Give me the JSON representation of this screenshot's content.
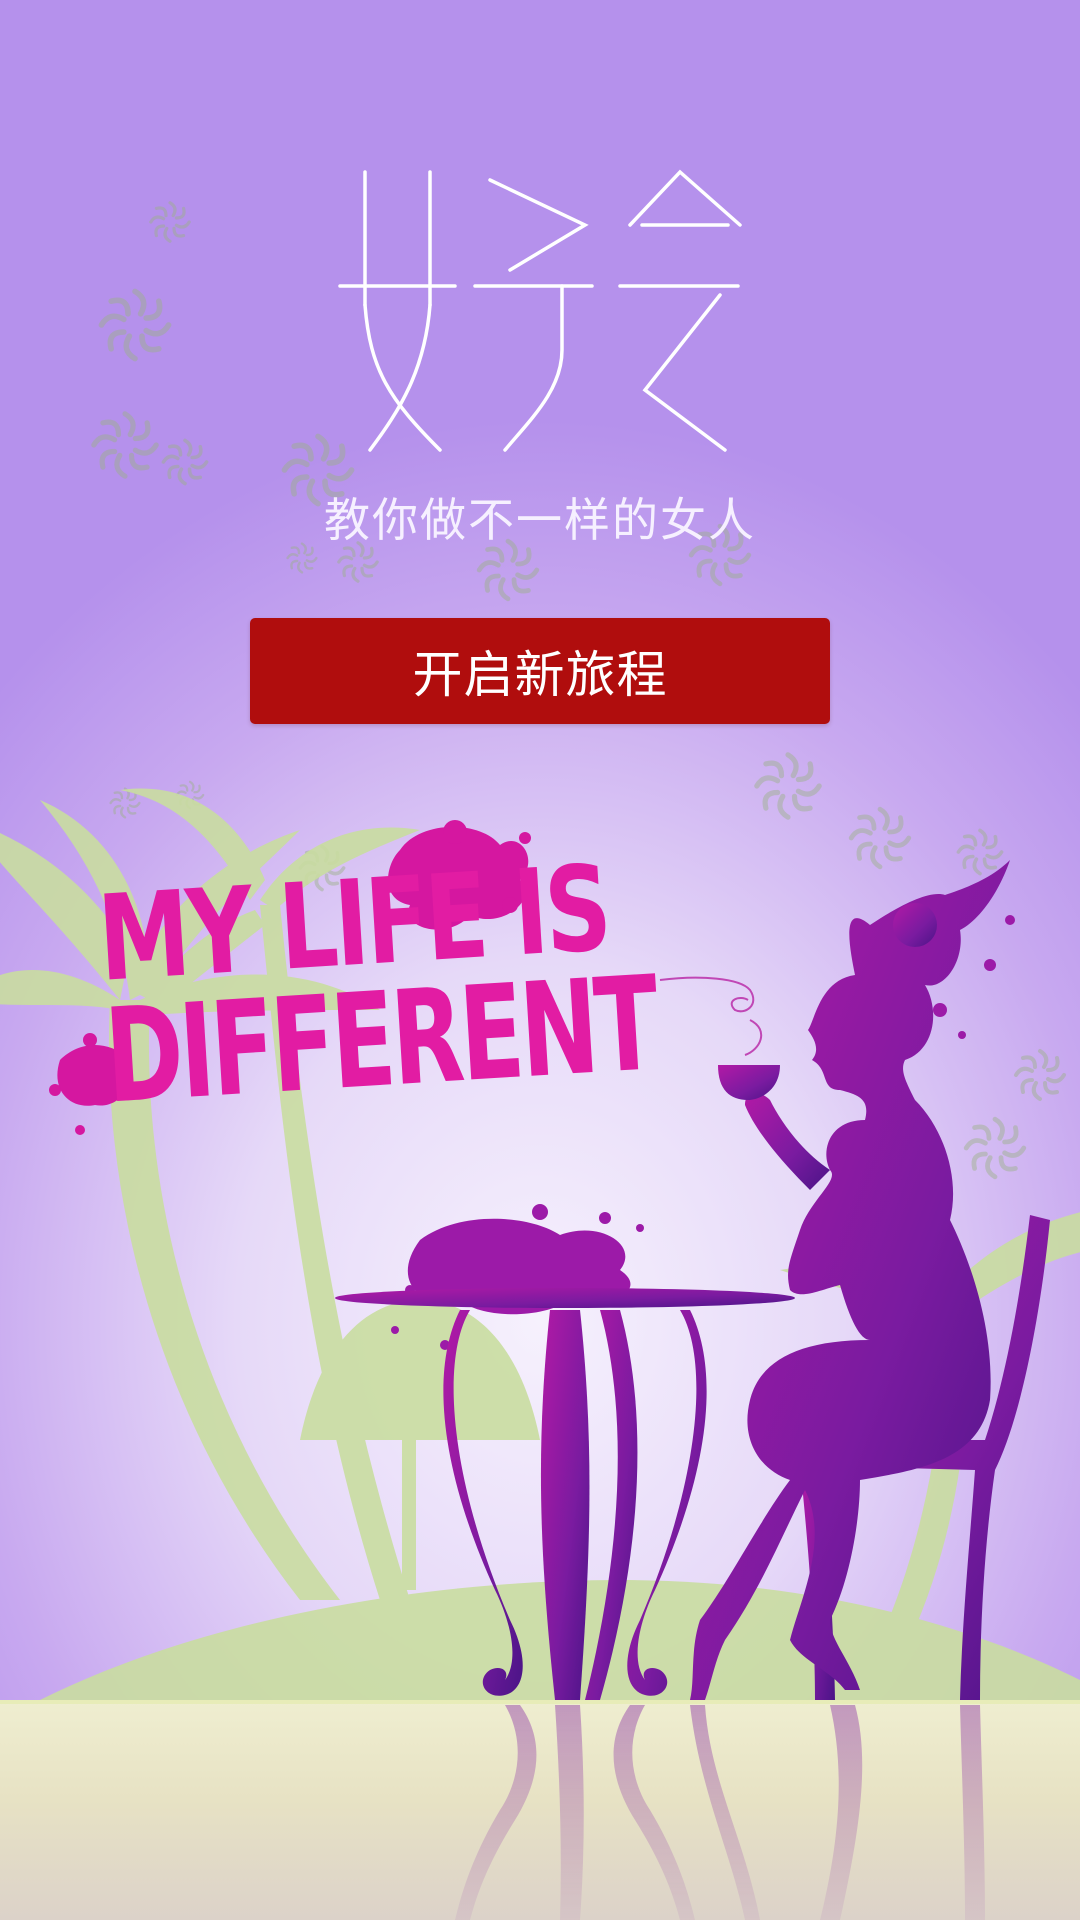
{
  "app": {
    "logo_text": "女子会",
    "subtitle": "教你做不一样的女人"
  },
  "cta": {
    "label": "开启新旅程"
  },
  "illustration": {
    "slogan_line1": "MY LIFE IS",
    "slogan_line2": "DIFFERENT"
  },
  "colors": {
    "button": "#b00d0d",
    "slogan": "#e21ca3",
    "silhouette": "#7a1ba0",
    "palm": "#c9dda0"
  },
  "icons": [
    "spiral-decoration-icon",
    "palm-tree-icon",
    "woman-silhouette-icon",
    "cafe-table-icon",
    "chair-icon"
  ]
}
